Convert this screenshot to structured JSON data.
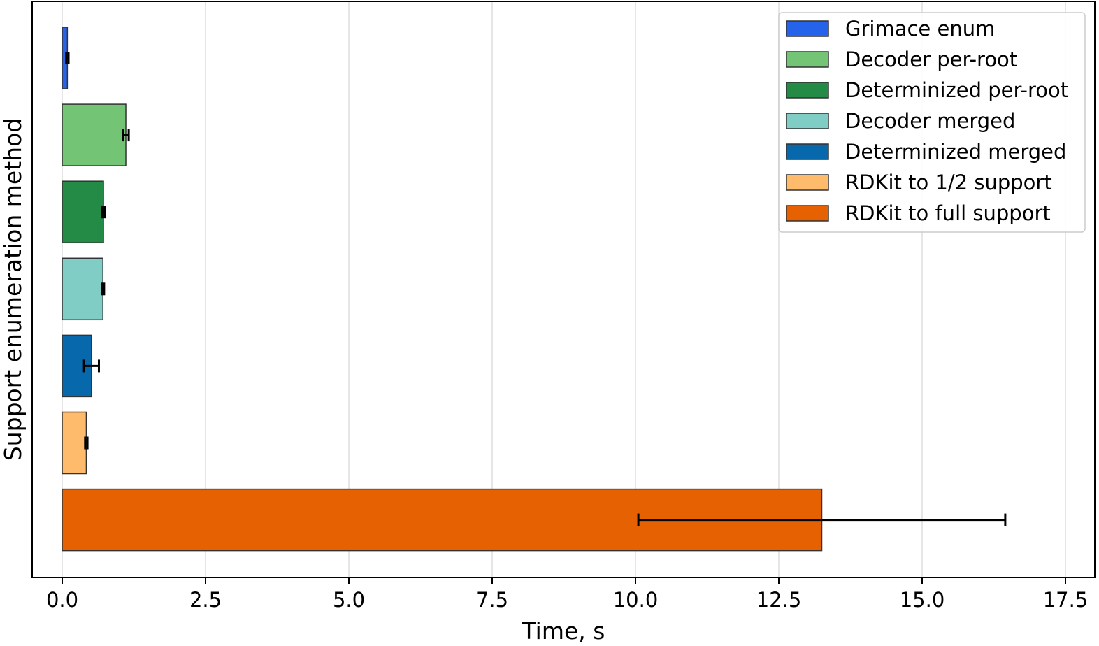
{
  "chart_data": {
    "type": "bar",
    "orientation": "horizontal",
    "xlabel": "Time, s",
    "ylabel": "Support enumeration method",
    "xlim": [
      -0.5,
      18.0
    ],
    "xticks": [
      0.0,
      2.5,
      5.0,
      7.5,
      10.0,
      12.5,
      15.0,
      17.5
    ],
    "xtick_labels": [
      "0.0",
      "2.5",
      "5.0",
      "7.5",
      "10.0",
      "12.5",
      "15.0",
      "17.5"
    ],
    "grid": "vertical",
    "legend_position": "top-right",
    "series": [
      {
        "name": "Grimace enum",
        "value": 0.09,
        "error": 0.02,
        "color": "#2563eb"
      },
      {
        "name": "Decoder per-root",
        "value": 1.11,
        "error": 0.05,
        "color": "#74c476"
      },
      {
        "name": "Determinized per-root",
        "value": 0.72,
        "error": 0.02,
        "color": "#238b45"
      },
      {
        "name": "Decoder merged",
        "value": 0.71,
        "error": 0.02,
        "color": "#7fcdc4"
      },
      {
        "name": "Determinized merged",
        "value": 0.51,
        "error": 0.13,
        "color": "#0868ac"
      },
      {
        "name": "RDKit to 1/2 support",
        "value": 0.42,
        "error": 0.02,
        "color": "#fdbb6b"
      },
      {
        "name": "RDKit to full support",
        "value": 13.25,
        "error": 3.2,
        "color": "#e66101"
      }
    ]
  }
}
